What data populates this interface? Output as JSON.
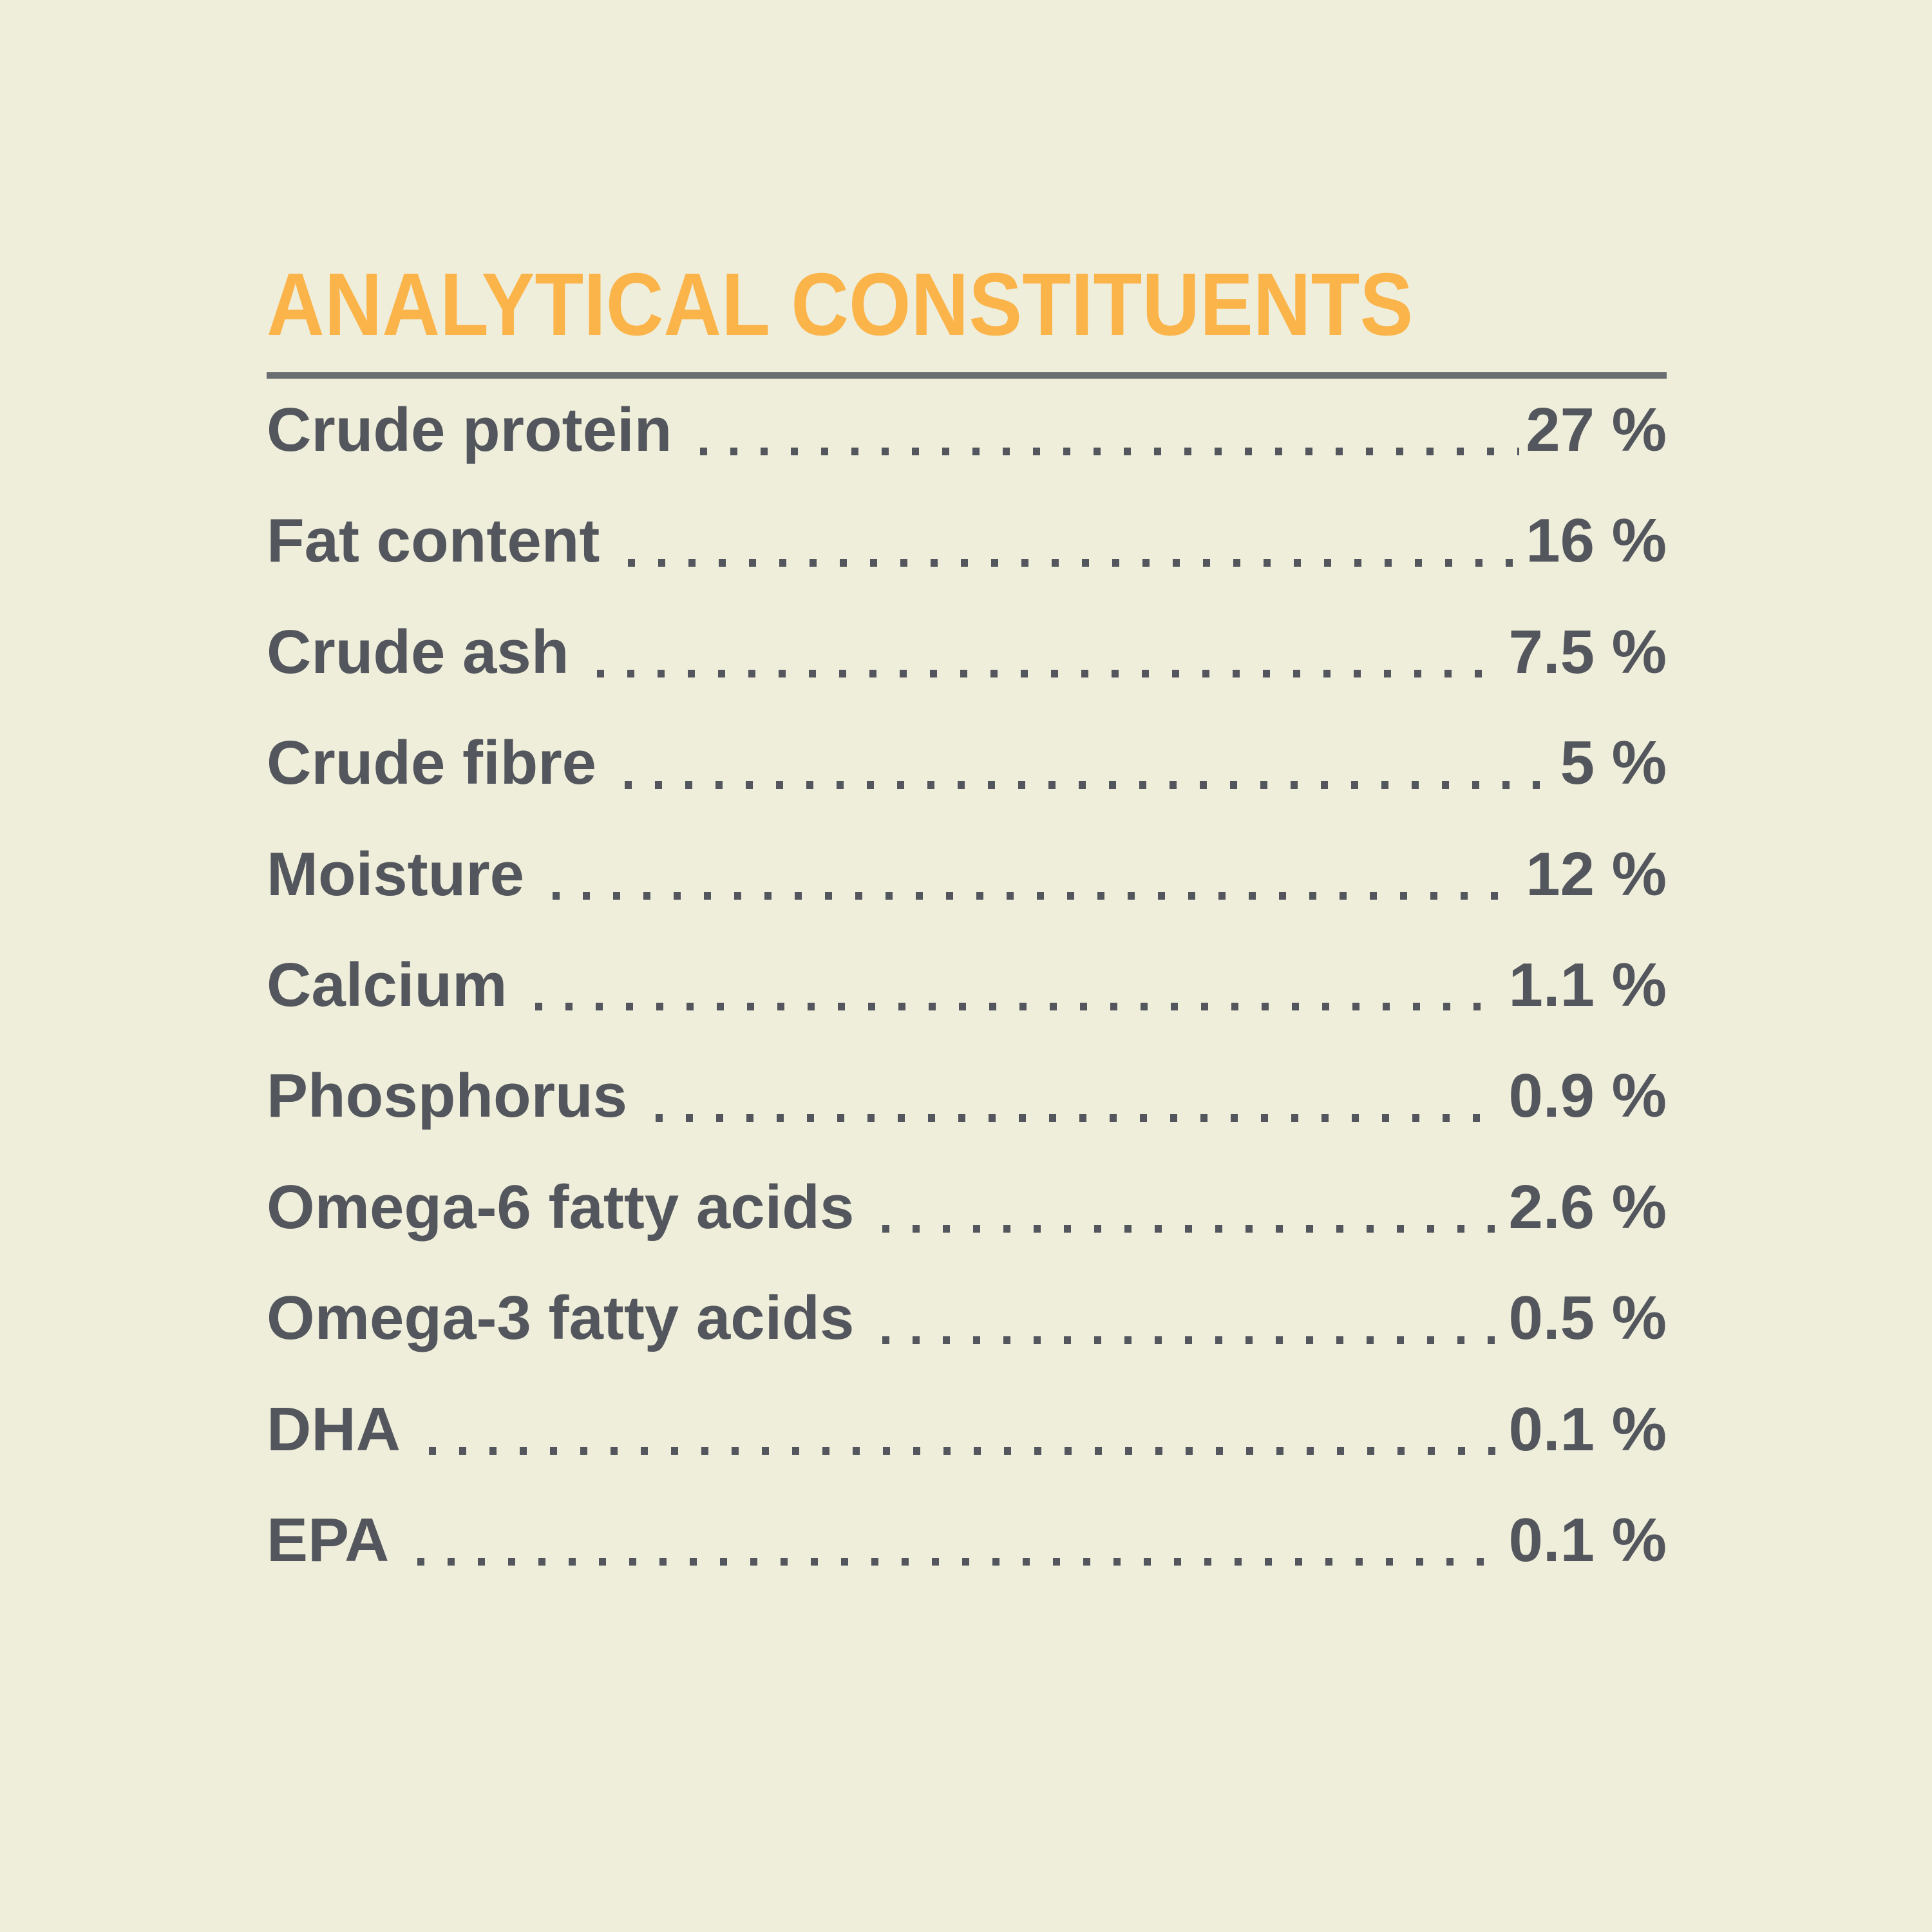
{
  "colors": {
    "background": "#EFEEDB",
    "accent": "#FAB44A",
    "text": "#53565C",
    "rule": "#6B6E71"
  },
  "header": {
    "title": "ANALYTICAL CONSTITUENTS"
  },
  "table": {
    "rows": [
      {
        "label": "Crude protein",
        "value": "27 %"
      },
      {
        "label": "Fat content",
        "value": "16 %"
      },
      {
        "label": "Crude ash",
        "value": "7.5 %"
      },
      {
        "label": "Crude fibre",
        "value": "5 %"
      },
      {
        "label": "Moisture",
        "value": "12 %"
      },
      {
        "label": "Calcium",
        "value": "1.1 %"
      },
      {
        "label": "Phosphorus",
        "value": "0.9 %"
      },
      {
        "label": "Omega-6 fatty acids",
        "value": "2.6 %"
      },
      {
        "label": "Omega-3 fatty acids",
        "value": "0.5 %"
      },
      {
        "label": "DHA",
        "value": "0.1 %"
      },
      {
        "label": "EPA",
        "value": "0.1 %"
      }
    ]
  }
}
